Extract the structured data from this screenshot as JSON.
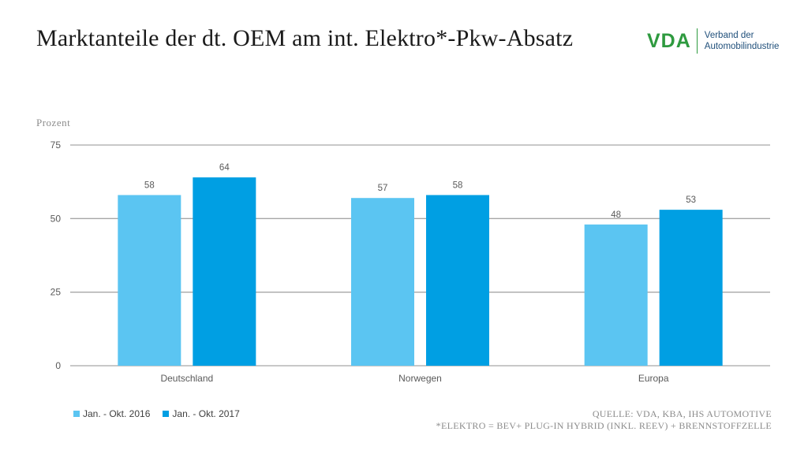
{
  "header": {
    "title": "Marktanteile der dt. OEM am int. Elektro*-Pkw-Absatz"
  },
  "logo": {
    "mark": "VDA",
    "text_line1": "Verband der",
    "text_line2": "Automobilindustrie",
    "color": "#2e9a3f"
  },
  "notes": {
    "source": "Quelle: VDA, KBA, IHS Automotive",
    "footnote": "*Elektro = BEV+ Plug-In Hybrid (inkl. REEV) + Brennstoffzelle"
  },
  "chart_data": {
    "type": "bar",
    "ylabel": "Prozent",
    "xlabel": "",
    "title": "",
    "ylim": [
      0,
      75
    ],
    "yticks": [
      0,
      25,
      50,
      75
    ],
    "categories": [
      "Deutschland",
      "Norwegen",
      "Europa"
    ],
    "series": [
      {
        "name": "Jan. - Okt. 2016",
        "values": [
          58,
          57,
          48
        ],
        "color": "#5bc5f2"
      },
      {
        "name": "Jan. - Okt. 2017",
        "values": [
          64,
          58,
          53
        ],
        "color": "#009fe3"
      }
    ],
    "grid": true,
    "legend_position": "bottom-left"
  }
}
